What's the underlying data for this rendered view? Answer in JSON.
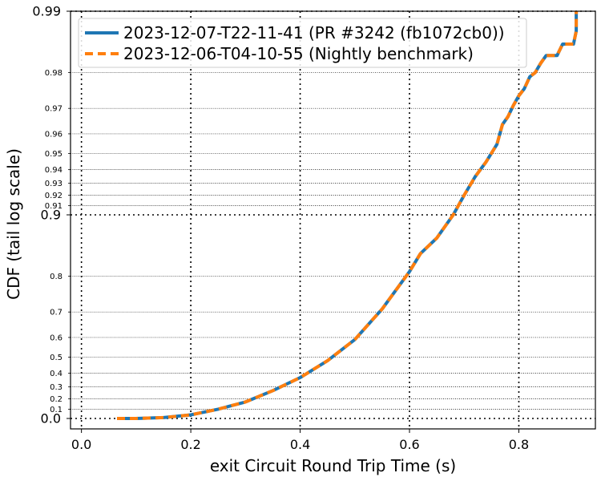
{
  "chart_data": {
    "type": "line",
    "title": "",
    "xlabel": "exit Circuit Round Trip Time (s)",
    "ylabel": "CDF (tail log scale)",
    "y_scale": "tail log (log of 1 - CDF)",
    "xlim": [
      -0.02,
      0.94
    ],
    "ylim": [
      0.0,
      0.99
    ],
    "grid": true,
    "legend_position": "top-left",
    "x_ticks": [
      "0.0",
      "0.2",
      "0.4",
      "0.6",
      "0.8"
    ],
    "x_tick_values": [
      0.0,
      0.2,
      0.4,
      0.6,
      0.8
    ],
    "y_major_ticks": [
      {
        "value": 0.0,
        "label": "0.0"
      },
      {
        "value": 0.9,
        "label": "0.9"
      },
      {
        "value": 0.99,
        "label": "0.99"
      }
    ],
    "y_minor_ticks": [
      {
        "value": 0.1,
        "label": "0.1"
      },
      {
        "value": 0.2,
        "label": "0.2"
      },
      {
        "value": 0.3,
        "label": "0.3"
      },
      {
        "value": 0.4,
        "label": "0.4"
      },
      {
        "value": 0.5,
        "label": "0.5"
      },
      {
        "value": 0.6,
        "label": "0.6"
      },
      {
        "value": 0.7,
        "label": "0.7"
      },
      {
        "value": 0.8,
        "label": "0.8"
      },
      {
        "value": 0.91,
        "label": "0.91"
      },
      {
        "value": 0.92,
        "label": "0.92"
      },
      {
        "value": 0.93,
        "label": "0.93"
      },
      {
        "value": 0.94,
        "label": "0.94"
      },
      {
        "value": 0.95,
        "label": "0.95"
      },
      {
        "value": 0.96,
        "label": "0.96"
      },
      {
        "value": 0.97,
        "label": "0.97"
      },
      {
        "value": 0.98,
        "label": "0.98"
      }
    ],
    "series": [
      {
        "name": "2023-12-07-T22-11-41 (PR #3242 (fb1072cb0))",
        "color": "#1f77b4",
        "style": "solid",
        "x": [
          0.065,
          0.1,
          0.15,
          0.2,
          0.25,
          0.3,
          0.35,
          0.4,
          0.45,
          0.5,
          0.55,
          0.6,
          0.62,
          0.65,
          0.68,
          0.7,
          0.72,
          0.74,
          0.76,
          0.77,
          0.78,
          0.79,
          0.8,
          0.81,
          0.82,
          0.83,
          0.84,
          0.85,
          0.87,
          0.88,
          0.9,
          0.905,
          0.905
        ],
        "y": [
          0.0,
          0.0,
          0.01,
          0.04,
          0.1,
          0.17,
          0.27,
          0.37,
          0.48,
          0.59,
          0.71,
          0.81,
          0.845,
          0.87,
          0.9,
          0.92,
          0.935,
          0.945,
          0.955,
          0.964,
          0.967,
          0.971,
          0.974,
          0.976,
          0.979,
          0.98,
          0.982,
          0.9835,
          0.9835,
          0.9855,
          0.9855,
          0.9875,
          0.99
        ]
      },
      {
        "name": "2023-12-06-T04-10-55 (Nightly benchmark)",
        "color": "#ff7f0e",
        "style": "dashed",
        "x": [
          0.065,
          0.1,
          0.15,
          0.2,
          0.25,
          0.3,
          0.35,
          0.4,
          0.45,
          0.5,
          0.55,
          0.6,
          0.62,
          0.65,
          0.68,
          0.7,
          0.72,
          0.74,
          0.76,
          0.77,
          0.78,
          0.79,
          0.8,
          0.81,
          0.82,
          0.83,
          0.84,
          0.85,
          0.87,
          0.88,
          0.9,
          0.905,
          0.905
        ],
        "y": [
          0.0,
          0.0,
          0.01,
          0.04,
          0.1,
          0.17,
          0.27,
          0.37,
          0.48,
          0.59,
          0.71,
          0.81,
          0.845,
          0.87,
          0.9,
          0.92,
          0.935,
          0.945,
          0.955,
          0.964,
          0.967,
          0.971,
          0.974,
          0.976,
          0.979,
          0.98,
          0.982,
          0.9835,
          0.9835,
          0.9855,
          0.9855,
          0.9875,
          0.99
        ]
      }
    ]
  }
}
